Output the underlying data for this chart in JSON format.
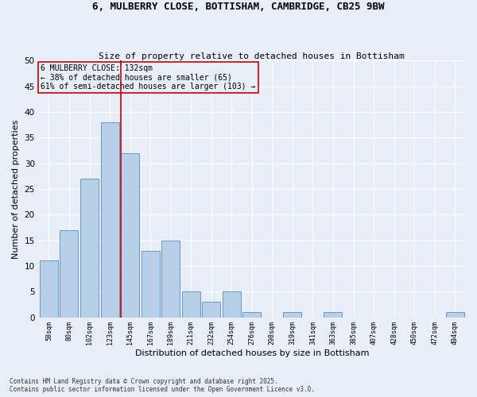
{
  "title_line1": "6, MULBERRY CLOSE, BOTTISHAM, CAMBRIDGE, CB25 9BW",
  "title_line2": "Size of property relative to detached houses in Bottisham",
  "xlabel": "Distribution of detached houses by size in Bottisham",
  "ylabel": "Number of detached properties",
  "categories": [
    "58sqm",
    "80sqm",
    "102sqm",
    "123sqm",
    "145sqm",
    "167sqm",
    "189sqm",
    "211sqm",
    "232sqm",
    "254sqm",
    "276sqm",
    "298sqm",
    "319sqm",
    "341sqm",
    "363sqm",
    "385sqm",
    "407sqm",
    "428sqm",
    "450sqm",
    "472sqm",
    "494sqm"
  ],
  "values": [
    11,
    17,
    27,
    38,
    32,
    13,
    15,
    5,
    3,
    5,
    1,
    0,
    1,
    0,
    1,
    0,
    0,
    0,
    0,
    0,
    1
  ],
  "bar_color": "#b8cfe8",
  "bar_edge_color": "#6699cc",
  "background_color": "#e8eef8",
  "grid_color": "#ffffff",
  "vline_color": "#cc0000",
  "annotation_box_color": "#cc0000",
  "annotation_text": "6 MULBERRY CLOSE: 132sqm\n← 38% of detached houses are smaller (65)\n61% of semi-detached houses are larger (103) →",
  "footer_line1": "Contains HM Land Registry data © Crown copyright and database right 2025.",
  "footer_line2": "Contains public sector information licensed under the Open Government Licence v3.0.",
  "ylim": [
    0,
    50
  ],
  "yticks": [
    0,
    5,
    10,
    15,
    20,
    25,
    30,
    35,
    40,
    45,
    50
  ],
  "vline_pos": 3.55
}
